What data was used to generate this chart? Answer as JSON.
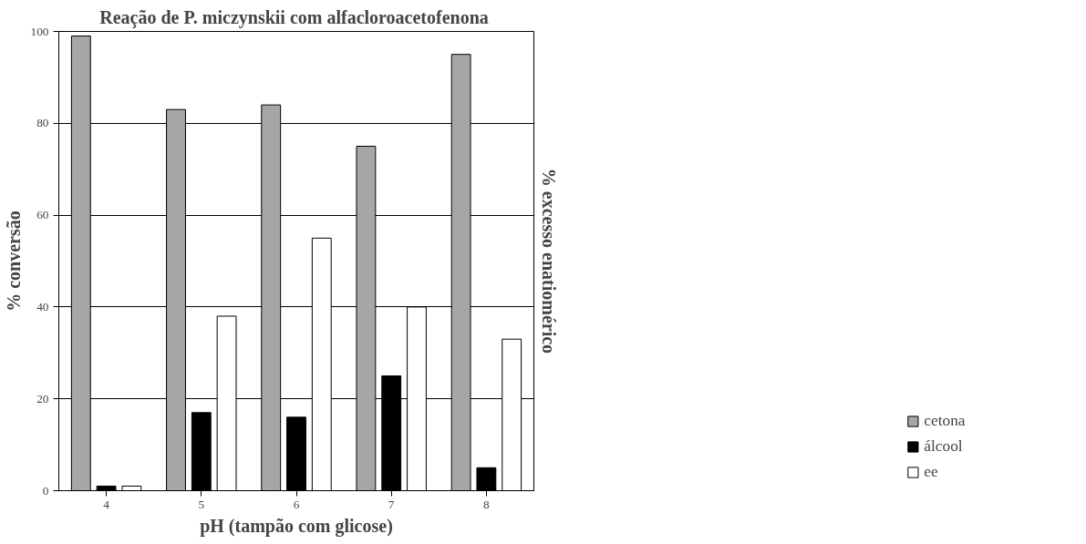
{
  "chart_data": {
    "type": "bar",
    "title": "Reação de P. miczynskii  com alfacloroacetofenona",
    "xlabel": "pH (tampão com glicose)",
    "ylabel": "% conversão",
    "y2label": "% excesso enatiomérico",
    "categories": [
      "4",
      "5",
      "6",
      "7",
      "8"
    ],
    "series": [
      {
        "name": "cetona",
        "color": "#a6a6a6",
        "values": [
          99,
          83,
          84,
          75,
          95
        ]
      },
      {
        "name": "álcool",
        "color": "#000000",
        "values": [
          1,
          17,
          16,
          25,
          5
        ]
      },
      {
        "name": "ee",
        "color": "#ffffff",
        "values": [
          1,
          38,
          55,
          40,
          33
        ]
      }
    ],
    "ylim": [
      0,
      100
    ],
    "yticks": [
      0,
      20,
      40,
      60,
      80,
      100
    ],
    "grid": "y",
    "legend": "bottom right"
  }
}
